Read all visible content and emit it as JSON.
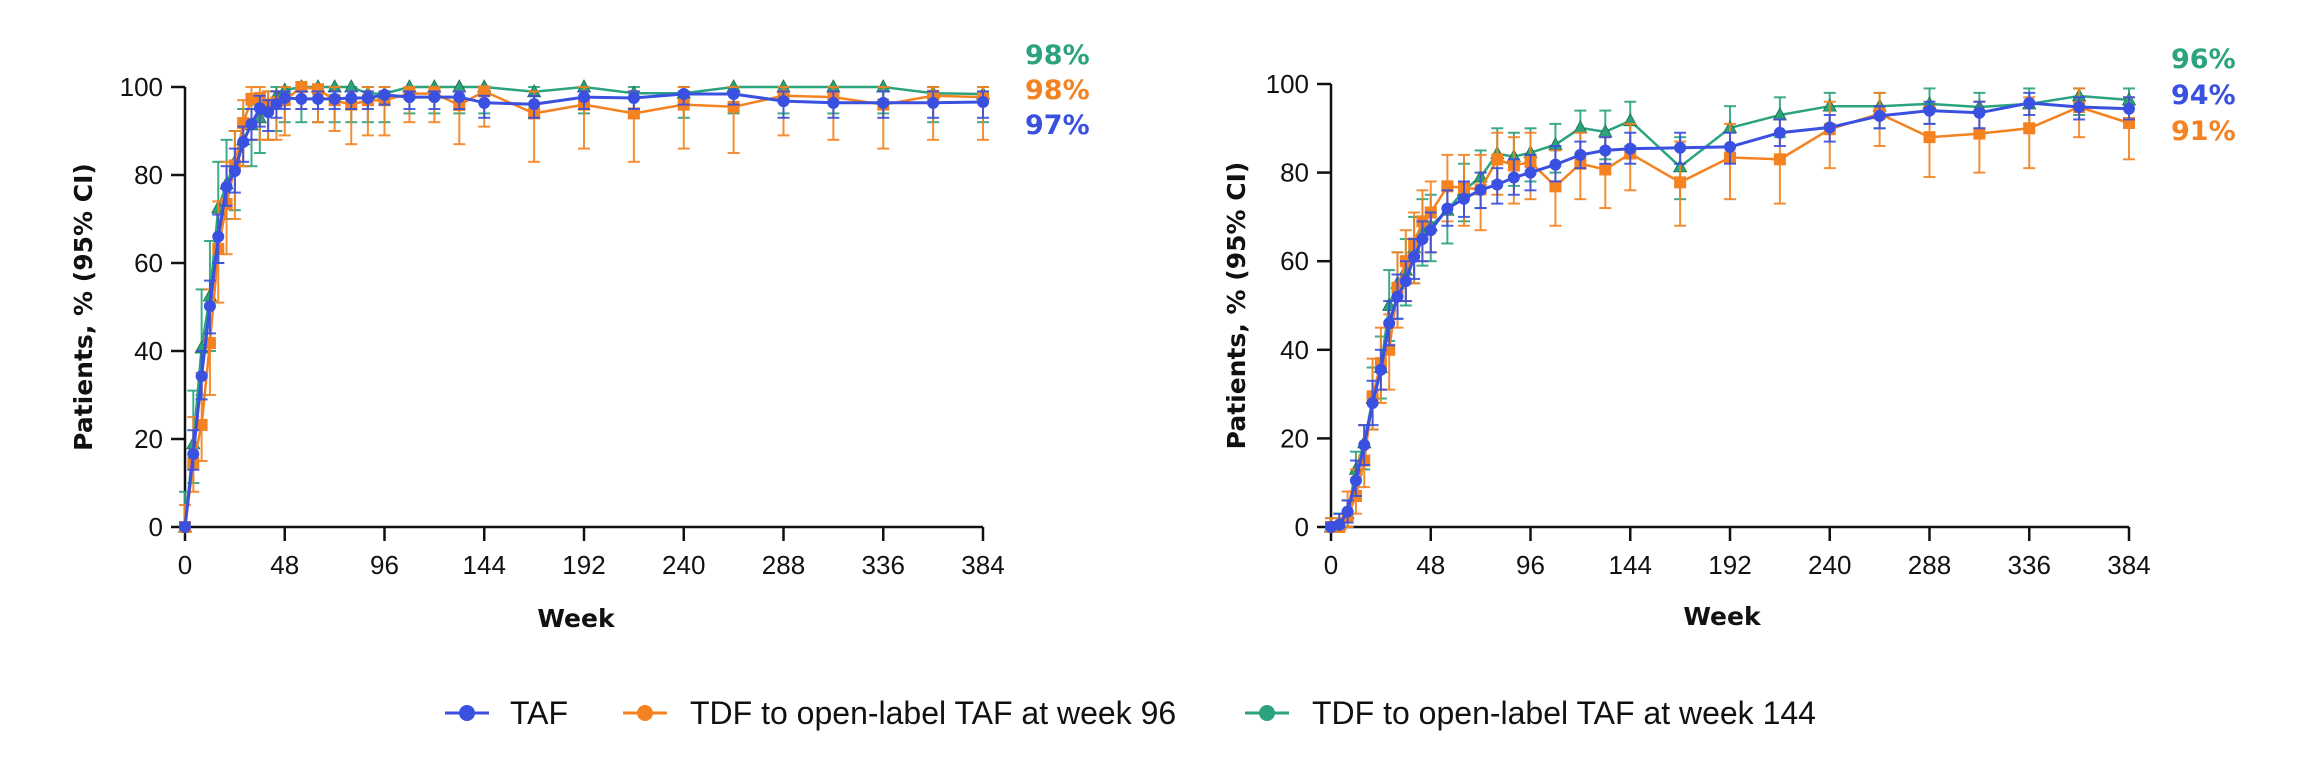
{
  "colors": {
    "TAF": "#3a50e0",
    "TDF96": "#f58220",
    "TDF144": "#2aa37e"
  },
  "legend": [
    {
      "key": "TAF",
      "label": "TAF",
      "marker": "circle"
    },
    {
      "key": "TDF96",
      "label": "TDF to open-label TAF at week 96",
      "marker": "circle"
    },
    {
      "key": "TDF144",
      "label": "TDF to open-label TAF at week 144",
      "marker": "circle"
    }
  ],
  "chart_data": [
    {
      "type": "line",
      "title": "",
      "xlabel": "Week",
      "ylabel": "Patients, % (95% CI)",
      "xlim": [
        0,
        384
      ],
      "ylim": [
        0,
        100
      ],
      "xticks": [
        0,
        48,
        96,
        144,
        192,
        240,
        288,
        336,
        384
      ],
      "yticks": [
        0,
        20,
        40,
        60,
        80,
        100
      ],
      "grid": false,
      "legend_position": "bottom",
      "end_labels": [
        {
          "series": "TDF144",
          "text": "98%"
        },
        {
          "series": "TDF96",
          "text": "98%"
        },
        {
          "series": "TAF",
          "text": "97%"
        }
      ],
      "series": [
        {
          "name": "TAF",
          "key": "TAF",
          "marker": "circle",
          "x": [
            0,
            4,
            8,
            12,
            16,
            20,
            24,
            28,
            32,
            36,
            40,
            44,
            48,
            56,
            64,
            72,
            80,
            88,
            96,
            108,
            120,
            132,
            144,
            168,
            192,
            216,
            240,
            264,
            288,
            312,
            336,
            360,
            384
          ],
          "y": [
            0,
            16.6,
            34.3,
            50.2,
            66,
            77.3,
            80.9,
            87.5,
            91.6,
            95.2,
            94.3,
            96.1,
            97.5,
            97.3,
            97.3,
            97.3,
            97.5,
            97.5,
            98.2,
            97.7,
            97.7,
            97.7,
            96.4,
            96.1,
            97.7,
            97.5,
            98.4,
            98.4,
            96.8,
            96.4,
            96.4,
            96.4,
            96.6
          ],
          "ci_low": [
            0,
            13,
            29,
            44,
            60,
            73,
            76,
            83,
            88,
            91,
            90,
            93,
            95,
            95,
            95,
            95,
            95,
            95,
            96,
            95,
            95,
            95,
            93,
            93,
            95,
            95,
            96,
            96,
            93,
            93,
            93,
            93,
            93
          ],
          "ci_high": [
            1,
            22,
            40,
            56,
            71,
            82,
            86,
            91,
            95,
            98,
            97,
            99,
            99,
            99,
            99,
            99,
            99,
            99,
            99,
            99,
            99,
            99,
            98,
            98,
            99,
            99,
            99,
            99,
            99,
            99,
            99,
            99,
            99
          ]
        },
        {
          "name": "TDF to open-label TAF at week 96",
          "key": "TDF96",
          "marker": "square",
          "x": [
            0,
            4,
            8,
            12,
            16,
            20,
            24,
            28,
            32,
            36,
            40,
            44,
            48,
            56,
            64,
            72,
            80,
            88,
            96,
            108,
            120,
            132,
            144,
            168,
            192,
            216,
            240,
            264,
            288,
            312,
            336,
            360,
            384
          ],
          "y": [
            0,
            14.5,
            23.2,
            41.8,
            63.2,
            73.4,
            82.2,
            91.8,
            97.3,
            97.5,
            96,
            96.5,
            97,
            100,
            99.5,
            97,
            96,
            97,
            97,
            98.5,
            98.5,
            95.9,
            99,
            94,
            96,
            94,
            96,
            95.5,
            98,
            97.7,
            96,
            98,
            97.7
          ],
          "ci_low": [
            0,
            8,
            15,
            30,
            51,
            62,
            70,
            82,
            88,
            88,
            88,
            88,
            89,
            95,
            92,
            90,
            87,
            89,
            89,
            92,
            92,
            87,
            91,
            83,
            86,
            83,
            86,
            85,
            89,
            88,
            86,
            88,
            88
          ],
          "ci_high": [
            5,
            25,
            35,
            54,
            74,
            83,
            90,
            97,
            100,
            100,
            99,
            99,
            100,
            100,
            100,
            100,
            99,
            100,
            100,
            100,
            100,
            99,
            100,
            99,
            100,
            99,
            100,
            100,
            100,
            100,
            100,
            100,
            100
          ]
        },
        {
          "name": "TDF to open-label TAF at week 144",
          "key": "TDF144",
          "marker": "triangle",
          "x": [
            0,
            4,
            8,
            12,
            16,
            20,
            24,
            28,
            32,
            36,
            40,
            44,
            48,
            56,
            64,
            72,
            80,
            88,
            96,
            108,
            120,
            132,
            144,
            168,
            192,
            216,
            240,
            264,
            288,
            312,
            336,
            360,
            384
          ],
          "y": [
            0,
            18.9,
            40.7,
            52.5,
            72.5,
            78,
            83,
            88,
            91.4,
            93,
            96,
            98,
            99.3,
            100,
            100,
            100,
            100,
            98.5,
            98.5,
            100,
            100,
            100,
            100,
            98.9,
            100,
            98.6,
            98.6,
            100,
            100,
            100,
            100,
            98.6,
            98.4
          ],
          "ci_low": [
            0,
            10,
            30,
            40,
            60,
            70,
            72,
            82,
            82,
            85,
            88,
            90,
            92,
            92,
            92,
            92,
            92,
            92,
            92,
            94,
            94,
            94,
            94,
            93,
            94,
            93,
            93,
            94,
            94,
            94,
            94,
            92,
            92
          ],
          "ci_high": [
            8,
            31,
            54,
            65,
            83,
            88,
            90,
            95,
            96,
            97,
            99,
            100,
            100,
            100,
            100,
            100,
            100,
            100,
            100,
            100,
            100,
            100,
            100,
            100,
            100,
            100,
            100,
            100,
            100,
            100,
            100,
            100,
            100
          ]
        }
      ]
    },
    {
      "type": "line",
      "title": "",
      "xlabel": "Week",
      "ylabel": "Patients, % (95% CI)",
      "xlim": [
        0,
        384
      ],
      "ylim": [
        0,
        100
      ],
      "xticks": [
        0,
        48,
        96,
        144,
        192,
        240,
        288,
        336,
        384
      ],
      "yticks": [
        0,
        20,
        40,
        60,
        80,
        100
      ],
      "grid": false,
      "legend_position": "bottom",
      "end_labels": [
        {
          "series": "TDF144",
          "text": "96%"
        },
        {
          "series": "TAF",
          "text": "94%"
        },
        {
          "series": "TDF96",
          "text": "91%"
        }
      ],
      "series": [
        {
          "name": "TAF",
          "key": "TAF",
          "marker": "circle",
          "x": [
            0,
            4,
            8,
            12,
            16,
            20,
            24,
            28,
            32,
            36,
            40,
            44,
            48,
            56,
            64,
            72,
            80,
            88,
            96,
            108,
            120,
            132,
            144,
            168,
            192,
            216,
            240,
            264,
            288,
            312,
            336,
            360,
            384
          ],
          "y": [
            0,
            0.5,
            3.5,
            10.5,
            18.5,
            28,
            35.5,
            46,
            52,
            55.5,
            61,
            65,
            67,
            71.9,
            74.1,
            76.1,
            77.3,
            78.9,
            80,
            81.8,
            84,
            85,
            85.4,
            85.6,
            85.8,
            89,
            90.2,
            92.8,
            94,
            93.5,
            95.7,
            94.8,
            94.4
          ],
          "ci_low": [
            0,
            0,
            1,
            7,
            14,
            23,
            31,
            41,
            47,
            51,
            56,
            60,
            62,
            68,
            70,
            72,
            73,
            75,
            76,
            78,
            81,
            82,
            82,
            82,
            82,
            86,
            87,
            90,
            91,
            90,
            93,
            92,
            92
          ],
          "ci_high": [
            1,
            3,
            6,
            15,
            23,
            33,
            40,
            51,
            57,
            60,
            65,
            69,
            71,
            76,
            78,
            80,
            81,
            83,
            84,
            86,
            87,
            88,
            89,
            89,
            89,
            92,
            93,
            95,
            96,
            96,
            98,
            97,
            97
          ]
        },
        {
          "name": "TDF to open-label TAF at week 96",
          "key": "TDF96",
          "marker": "square",
          "x": [
            0,
            4,
            8,
            12,
            16,
            20,
            24,
            28,
            32,
            36,
            40,
            44,
            48,
            56,
            64,
            72,
            80,
            88,
            96,
            108,
            120,
            132,
            144,
            168,
            192,
            216,
            240,
            264,
            288,
            312,
            336,
            360,
            384
          ],
          "y": [
            0,
            0,
            2.5,
            7,
            15,
            29.5,
            37,
            40,
            54,
            60,
            64,
            69,
            71,
            76.9,
            76.6,
            76.2,
            83,
            81.6,
            82.4,
            76.9,
            82,
            80.7,
            84.3,
            77.8,
            83.4,
            83,
            89.8,
            93.3,
            88,
            88.8,
            90,
            94.8,
            91.2
          ],
          "ci_low": [
            0,
            0,
            0,
            3,
            9,
            22,
            28,
            31,
            45,
            51,
            55,
            60,
            62,
            69,
            68,
            67,
            75,
            73,
            74,
            68,
            74,
            72,
            76,
            68,
            74,
            73,
            81,
            86,
            79,
            80,
            81,
            88,
            83
          ],
          "ci_high": [
            2,
            2,
            8,
            13,
            23,
            38,
            45,
            48,
            62,
            67,
            71,
            76,
            78,
            84,
            84,
            84,
            89,
            88,
            89,
            85,
            89,
            88,
            91,
            87,
            91,
            92,
            96,
            98,
            95,
            96,
            97,
            99,
            97
          ]
        },
        {
          "name": "TDF to open-label TAF at week 144",
          "key": "TDF144",
          "marker": "triangle",
          "x": [
            0,
            4,
            8,
            12,
            16,
            20,
            24,
            28,
            32,
            36,
            40,
            44,
            48,
            56,
            64,
            72,
            80,
            88,
            96,
            108,
            120,
            132,
            144,
            168,
            192,
            216,
            240,
            264,
            288,
            312,
            336,
            360,
            384
          ],
          "y": [
            0,
            0.5,
            3,
            13,
            19,
            29,
            36,
            50,
            55,
            58,
            63,
            67,
            68,
            71.5,
            76,
            79,
            84.3,
            83.6,
            84.5,
            86.3,
            90.1,
            89.2,
            91.7,
            81.3,
            90.1,
            93,
            95,
            95,
            95.5,
            94.8,
            95.5,
            97.3,
            96.4
          ],
          "ci_low": [
            0,
            0,
            0,
            8,
            13,
            22,
            29,
            42,
            47,
            50,
            55,
            59,
            60,
            64,
            69,
            72,
            78,
            77,
            78,
            80,
            84,
            83,
            86,
            74,
            84,
            88,
            90,
            90,
            91,
            90,
            91,
            93,
            92
          ],
          "ci_high": [
            2,
            3,
            6,
            17,
            23,
            36,
            43,
            58,
            62,
            65,
            70,
            74,
            75,
            78,
            82,
            85,
            90,
            89,
            90,
            91,
            94,
            94,
            96,
            88,
            95,
            97,
            98,
            98,
            99,
            98,
            99,
            99,
            99
          ]
        }
      ]
    }
  ]
}
